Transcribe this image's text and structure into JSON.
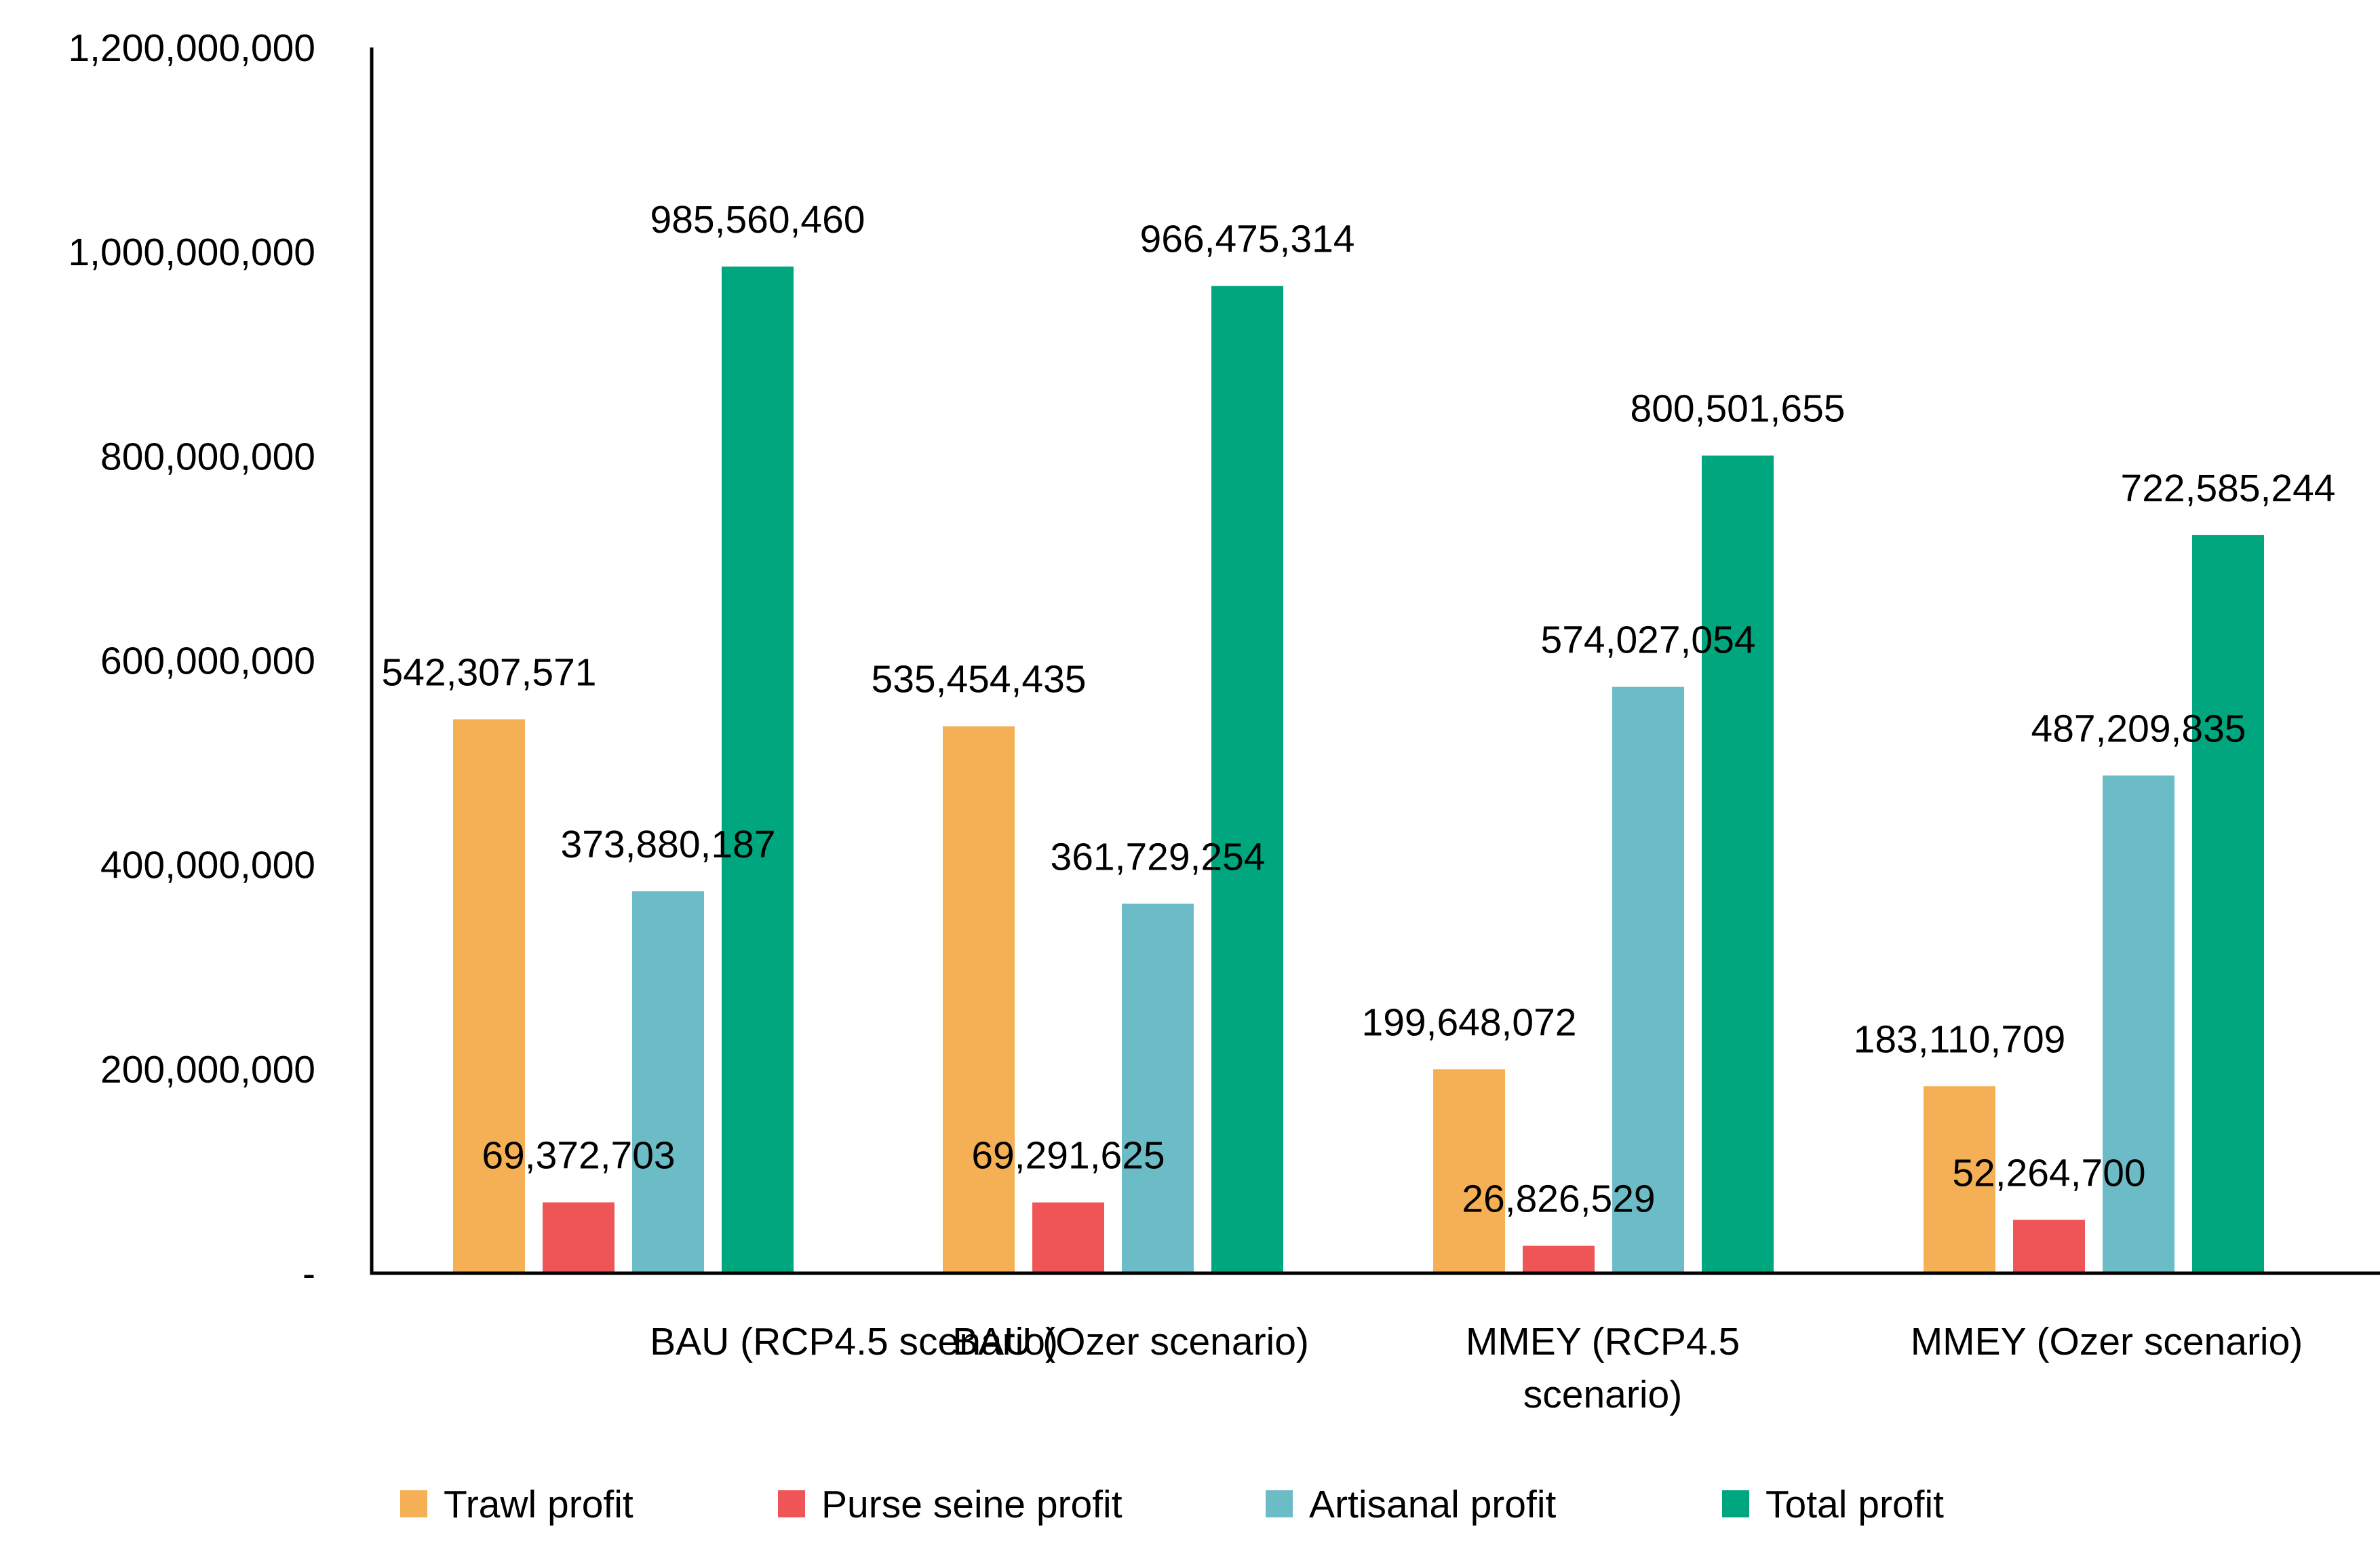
{
  "chart_data": {
    "type": "bar",
    "title": "",
    "xlabel": "",
    "ylabel": "",
    "ylim": [
      0,
      1200000000
    ],
    "y_ticks": [
      {
        "value": 0,
        "label": "-"
      },
      {
        "value": 200000000,
        "label": "200,000,000"
      },
      {
        "value": 400000000,
        "label": "400,000,000"
      },
      {
        "value": 600000000,
        "label": "600,000,000"
      },
      {
        "value": 800000000,
        "label": "800,000,000"
      },
      {
        "value": 1000000000,
        "label": "1,000,000,000"
      },
      {
        "value": 1200000000,
        "label": "1,200,000,000"
      }
    ],
    "categories": [
      [
        "BAU (RCP4.5 scenario)"
      ],
      [
        "BAU (Ozer scenario)"
      ],
      [
        "MMEY (RCP4.5",
        "scenario)"
      ],
      [
        "MMEY (Ozer scenario)"
      ]
    ],
    "series": [
      {
        "name": "Trawl profit",
        "color": "#F5B055",
        "values": [
          542307571,
          535454435,
          199648072,
          183110709
        ],
        "labels": [
          "542,307,571",
          "535,454,435",
          "199,648,072",
          "183,110,709"
        ]
      },
      {
        "name": "Purse seine profit",
        "color": "#EF5456",
        "values": [
          69372703,
          69291625,
          26826529,
          52264700
        ],
        "labels": [
          "69,372,703",
          "69,291,625",
          "26,826,529",
          "52,264,700"
        ]
      },
      {
        "name": "Artisanal profit",
        "color": "#6CBCC8",
        "values": [
          373880187,
          361729254,
          574027054,
          487209835
        ],
        "labels": [
          "373,880,187",
          "361,729,254",
          "574,027,054",
          "487,209,835"
        ]
      },
      {
        "name": "Total profit",
        "color": "#00A67E",
        "values": [
          985560460,
          966475314,
          800501655,
          722585244
        ],
        "labels": [
          "985,560,460",
          "966,475,314",
          "800,501,655",
          "722,585,244"
        ]
      }
    ],
    "grid": false,
    "legend_position": "bottom"
  }
}
